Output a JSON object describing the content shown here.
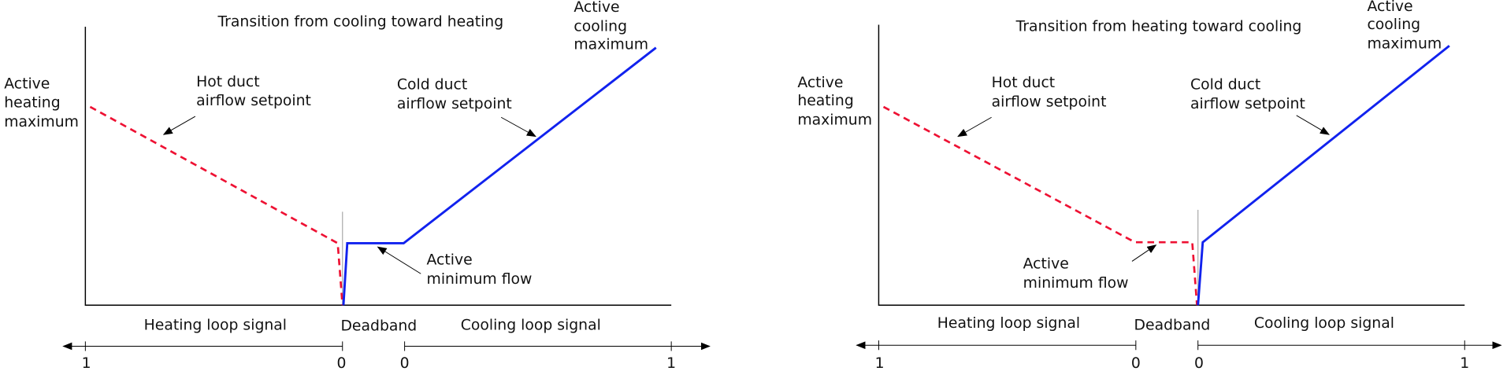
{
  "panels": [
    {
      "title": "Transition from cooling toward heating",
      "active_cooling_maximum": [
        "Active",
        "cooling",
        "maximum"
      ],
      "active_heating_maximum": [
        "Active",
        "heating",
        "maximum"
      ],
      "hot_duct": [
        "Hot duct",
        "airflow setpoint"
      ],
      "cold_duct": [
        "Cold duct",
        "airflow setpoint"
      ],
      "active_minimum_flow": [
        "Active",
        "minimum flow"
      ],
      "heating_loop_signal": "Heating loop signal",
      "deadband": "Deadband",
      "cooling_loop_signal": "Cooling loop signal",
      "scale_labels": [
        "1",
        "0",
        "0",
        "1"
      ]
    },
    {
      "title": "Transition from heating toward cooling",
      "active_cooling_maximum": [
        "Active",
        "cooling",
        "maximum"
      ],
      "active_heating_maximum": [
        "Active",
        "heating",
        "maximum"
      ],
      "hot_duct": [
        "Hot duct",
        "airflow setpoint"
      ],
      "cold_duct": [
        "Cold duct",
        "airflow setpoint"
      ],
      "active_minimum_flow": [
        "Active",
        "minimum flow"
      ],
      "heating_loop_signal": "Heating loop signal",
      "deadband": "Deadband",
      "cooling_loop_signal": "Cooling loop signal",
      "scale_labels": [
        "1",
        "0",
        "0",
        "1"
      ]
    }
  ]
}
